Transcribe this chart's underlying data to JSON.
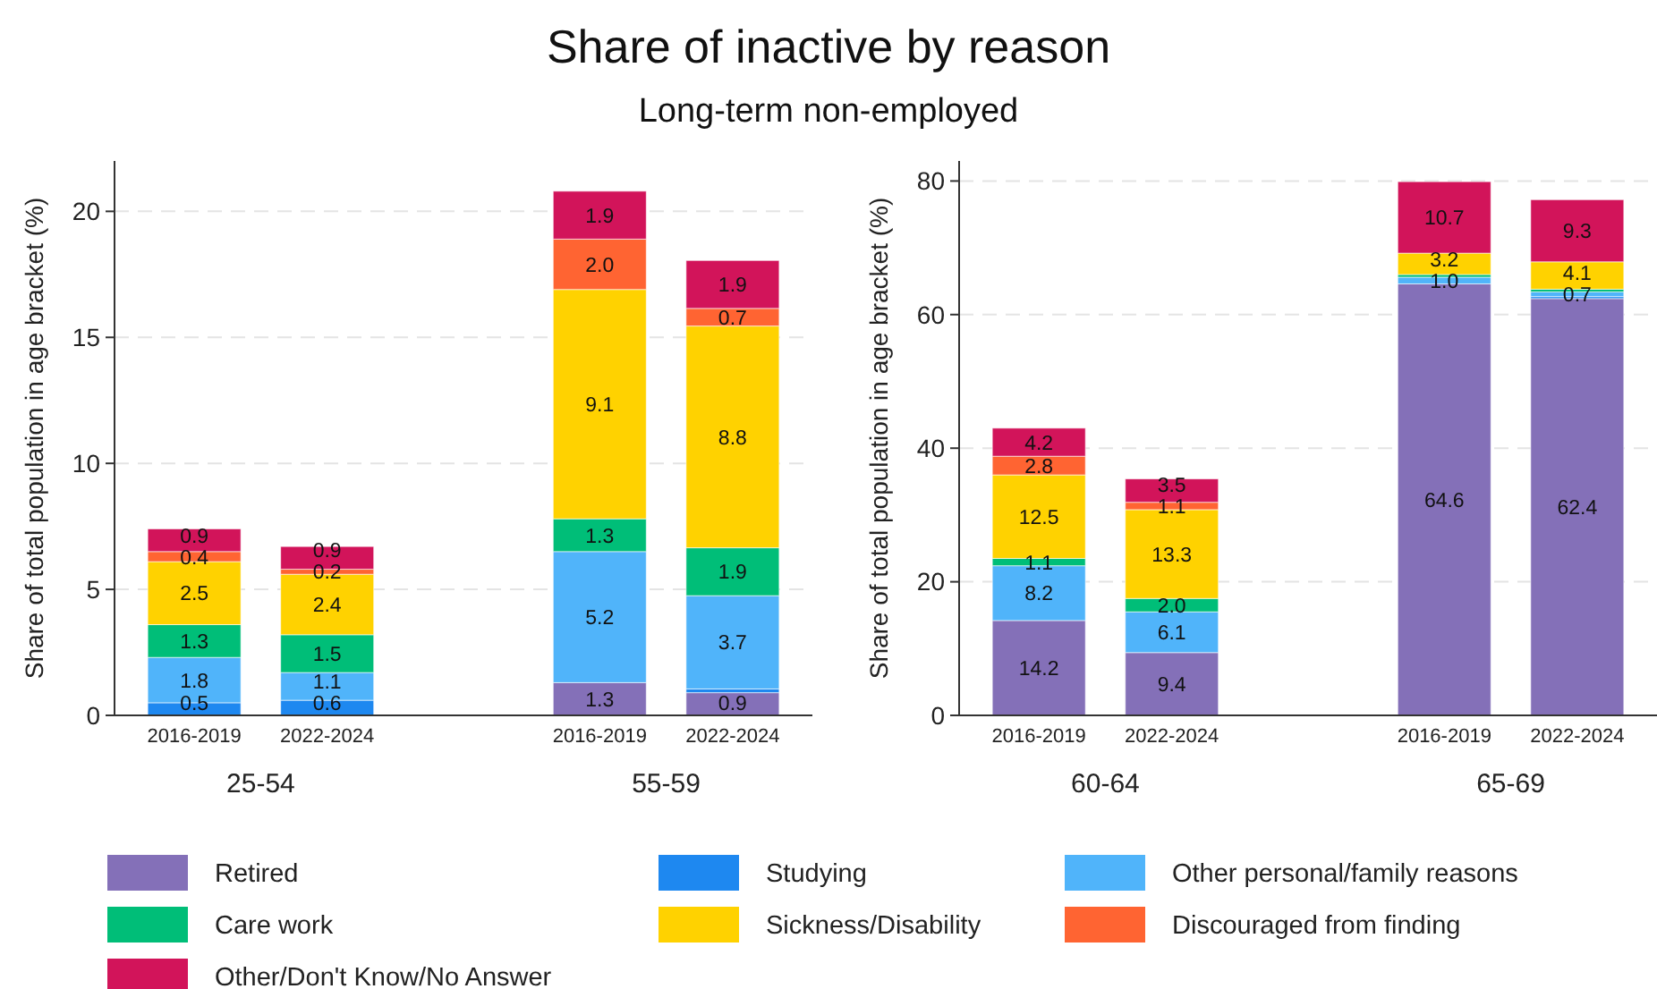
{
  "chart_data": [
    {
      "type": "bar",
      "stacked": true,
      "title": "Share of inactive by reason",
      "subtitle": "Long-term non-employed",
      "ylabel": "Share of total population in age bracket (%)",
      "categories": [
        "2016-2019",
        "2022-2024",
        "2016-2019",
        "2022-2024"
      ],
      "annotations": [
        "25-54",
        "55-59"
      ],
      "ylim": [
        0,
        22
      ],
      "yticks": [
        0,
        5,
        10,
        15,
        20
      ],
      "grid": "y",
      "legend": "bottom",
      "series": [
        {
          "name": "Retired",
          "color": "#8470b8",
          "values": [
            null,
            null,
            1.3,
            0.9
          ],
          "value_labels": [
            null,
            null,
            "1.3",
            "0.9"
          ]
        },
        {
          "name": "Studying",
          "color": "#1e88f0",
          "values": [
            0.5,
            0.6,
            null,
            0.15
          ],
          "value_labels": [
            "0.5",
            "0.6",
            null,
            null
          ]
        },
        {
          "name": "Other personal/family reasons",
          "color": "#50b4fa",
          "values": [
            1.8,
            1.1,
            5.2,
            3.7
          ],
          "value_labels": [
            "1.8",
            "1.1",
            "5.2",
            "3.7"
          ]
        },
        {
          "name": "Care work",
          "color": "#00be78",
          "values": [
            1.3,
            1.5,
            1.3,
            1.9
          ],
          "value_labels": [
            "1.3",
            "1.5",
            "1.3",
            "1.9"
          ]
        },
        {
          "name": "Sickness/Disability",
          "color": "#ffd200",
          "values": [
            2.5,
            2.4,
            9.1,
            8.8
          ],
          "value_labels": [
            "2.5",
            "2.4",
            "9.1",
            "8.8"
          ]
        },
        {
          "name": "Discouraged from finding",
          "color": "#ff6432",
          "values": [
            0.4,
            0.2,
            2.0,
            0.7
          ],
          "value_labels": [
            "0.4",
            "0.2",
            "2.0",
            "0.7"
          ]
        },
        {
          "name": "Other/Don't Know/No Answer",
          "color": "#d2145a",
          "values": [
            0.9,
            0.9,
            1.9,
            1.9
          ],
          "value_labels": [
            "0.9",
            "0.9",
            "1.9",
            "1.9"
          ]
        }
      ]
    },
    {
      "type": "bar",
      "stacked": true,
      "ylabel": "Share of total population in age bracket (%)",
      "categories": [
        "2016-2019",
        "2022-2024",
        "2016-2019",
        "2022-2024"
      ],
      "annotations": [
        "60-64",
        "65-69"
      ],
      "ylim": [
        0,
        83
      ],
      "yticks": [
        0,
        20,
        40,
        60,
        80
      ],
      "grid": "y",
      "series": [
        {
          "name": "Retired",
          "color": "#8470b8",
          "values": [
            14.2,
            9.4,
            64.6,
            62.4
          ],
          "value_labels": [
            "14.2",
            "9.4",
            "64.6",
            "62.4"
          ]
        },
        {
          "name": "Studying",
          "color": "#1e88f0",
          "values": [
            null,
            null,
            null,
            0.3
          ],
          "value_labels": [
            null,
            null,
            null,
            null
          ]
        },
        {
          "name": "Other personal/family reasons",
          "color": "#50b4fa",
          "values": [
            8.2,
            6.1,
            1.0,
            0.7
          ],
          "value_labels": [
            "8.2",
            "6.1",
            "1.0",
            "0.7"
          ]
        },
        {
          "name": "Care work",
          "color": "#00be78",
          "values": [
            1.1,
            2.0,
            0.4,
            0.4
          ],
          "value_labels": [
            "1.1",
            "2.0",
            null,
            null
          ]
        },
        {
          "name": "Sickness/Disability",
          "color": "#ffd200",
          "values": [
            12.5,
            13.3,
            3.2,
            4.1
          ],
          "value_labels": [
            "12.5",
            "13.3",
            "3.2",
            "4.1"
          ]
        },
        {
          "name": "Discouraged from finding",
          "color": "#ff6432",
          "values": [
            2.8,
            1.1,
            null,
            null
          ],
          "value_labels": [
            "2.8",
            "1.1",
            null,
            null
          ]
        },
        {
          "name": "Other/Don't Know/No Answer",
          "color": "#d2145a",
          "values": [
            4.2,
            3.5,
            10.7,
            9.3
          ],
          "value_labels": [
            "4.2",
            "3.5",
            "10.7",
            "9.3"
          ]
        }
      ]
    }
  ]
}
